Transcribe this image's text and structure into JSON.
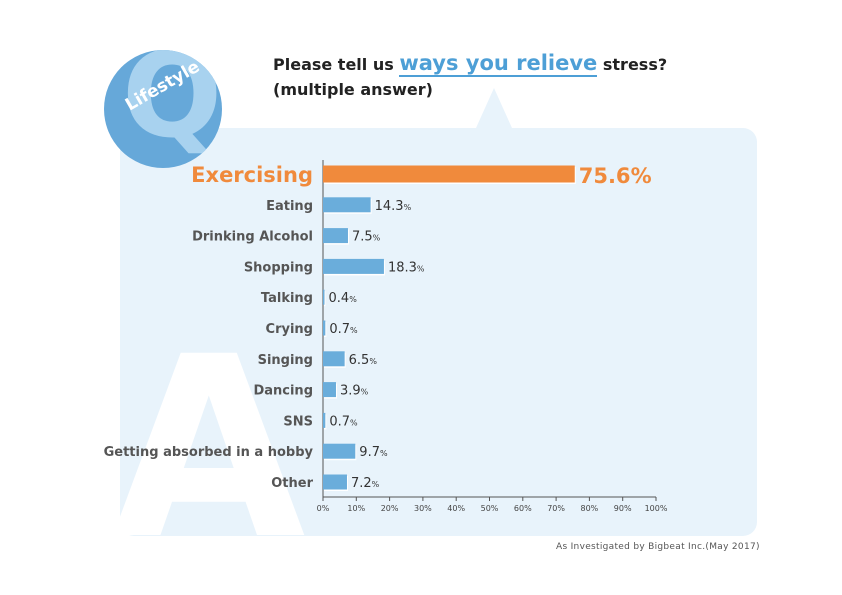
{
  "header": {
    "question_letter": "Q",
    "category": "Lifestyle",
    "title_prefix": "Please tell us ",
    "title_highlight": "ways you relieve",
    "title_suffix": " stress?",
    "title_line2": "(multiple answer)"
  },
  "answer_letter": "A",
  "source": "As Investigated by Bigbeat Inc.(May 2017)",
  "colors": {
    "bar": "#6aaddb",
    "highlight_bar": "#f08a3c",
    "panel": "#e8f3fb",
    "accent": "#4d9fd6"
  },
  "chart_data": {
    "type": "bar",
    "orientation": "horizontal",
    "categories": [
      "Exercising",
      "Eating",
      "Drinking Alcohol",
      "Shopping",
      "Talking",
      "Crying",
      "Singing",
      "Dancing",
      "SNS",
      "Getting absorbed in a hobby",
      "Other"
    ],
    "values": [
      75.6,
      14.3,
      7.5,
      18.3,
      0.4,
      0.7,
      6.5,
      3.9,
      0.7,
      9.7,
      7.2
    ],
    "value_labels": [
      "75.6",
      "14.3",
      "7.5",
      "18.3",
      "0.4",
      "0.7",
      "6.5",
      "3.9",
      "0.7",
      "9.7",
      "7.2"
    ],
    "unit": "%",
    "highlight": "Exercising",
    "xlim": [
      0,
      100
    ],
    "xticks": [
      "0%",
      "10%",
      "20%",
      "30%",
      "40%",
      "50%",
      "60%",
      "70%",
      "80%",
      "90%",
      "100%"
    ],
    "grid": false
  }
}
